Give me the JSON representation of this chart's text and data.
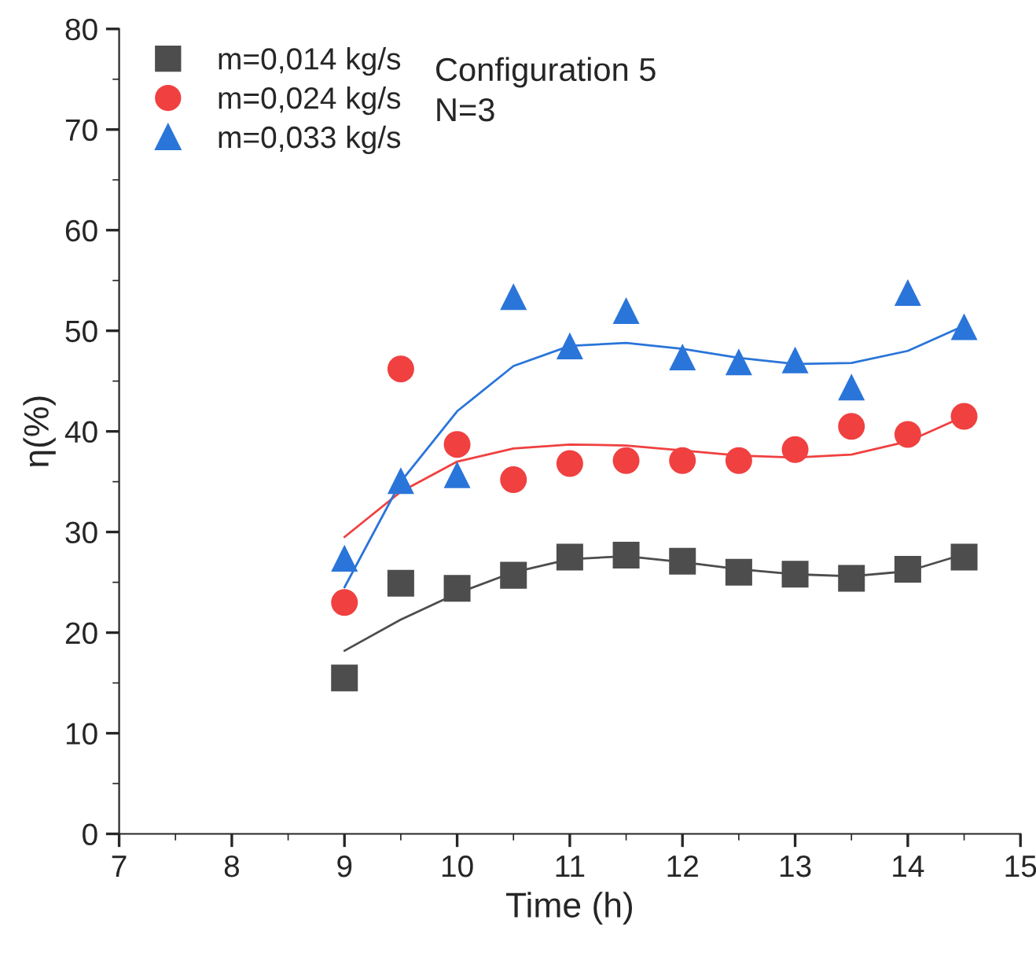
{
  "chart_data": {
    "type": "scatter",
    "xlabel": "Time (h)",
    "ylabel": "η(%)",
    "x": [
      9,
      9.5,
      10,
      10.5,
      11,
      11.5,
      12,
      12.5,
      13,
      13.5,
      14,
      14.5
    ],
    "series": [
      {
        "name": "m=0,014 kg/s",
        "color": "#4d4d4d",
        "marker": "square",
        "values": [
          15.5,
          24.9,
          24.4,
          25.7,
          27.5,
          27.7,
          27.1,
          26.0,
          25.8,
          25.4,
          26.3,
          27.5
        ]
      },
      {
        "name": "m=0,024 kg/s",
        "color": "#f04040",
        "marker": "circle",
        "values": [
          23.0,
          46.2,
          38.7,
          35.2,
          36.8,
          37.1,
          37.1,
          37.1,
          38.2,
          40.5,
          39.7,
          41.5
        ]
      },
      {
        "name": "m=0,033 kg/s",
        "color": "#2a75d9",
        "marker": "triangle",
        "values": [
          27.4,
          35.1,
          35.7,
          53.4,
          48.5,
          52.0,
          47.4,
          46.9,
          47.1,
          44.4,
          53.8,
          50.4
        ]
      },
      {
        "type": "line",
        "color": "#4d4d4d",
        "x": [
          9,
          9.5,
          10,
          10.5,
          11,
          11.5,
          12,
          12.5,
          13,
          13.5,
          14,
          14.5
        ],
        "values": [
          18.2,
          21.3,
          23.9,
          26.0,
          27.3,
          27.6,
          27.0,
          26.3,
          25.8,
          25.6,
          26.1,
          27.8
        ]
      },
      {
        "type": "line",
        "color": "#f04040",
        "x": [
          9,
          9.5,
          10,
          10.5,
          11,
          11.5,
          12,
          12.5,
          13,
          13.5,
          14,
          14.5
        ],
        "values": [
          29.5,
          34.0,
          37.0,
          38.3,
          38.7,
          38.6,
          38.1,
          37.6,
          37.4,
          37.7,
          39.0,
          41.5
        ]
      },
      {
        "type": "line",
        "color": "#2a75d9",
        "x": [
          9,
          9.5,
          10,
          10.5,
          11,
          11.5,
          12,
          12.5,
          13,
          13.5,
          14,
          14.5
        ],
        "values": [
          24.5,
          35.0,
          42.0,
          46.5,
          48.5,
          48.8,
          48.2,
          47.3,
          46.7,
          46.8,
          48.0,
          50.5
        ]
      }
    ],
    "annotations": [
      "Configuration 5",
      "N=3"
    ],
    "xlim": [
      7,
      15
    ],
    "xticks": [
      7,
      8,
      9,
      10,
      11,
      12,
      13,
      14,
      15
    ],
    "ylim": [
      0,
      80
    ],
    "yticks": [
      0,
      10,
      20,
      30,
      40,
      50,
      60,
      70,
      80
    ],
    "legend": "top left",
    "grid": false
  }
}
